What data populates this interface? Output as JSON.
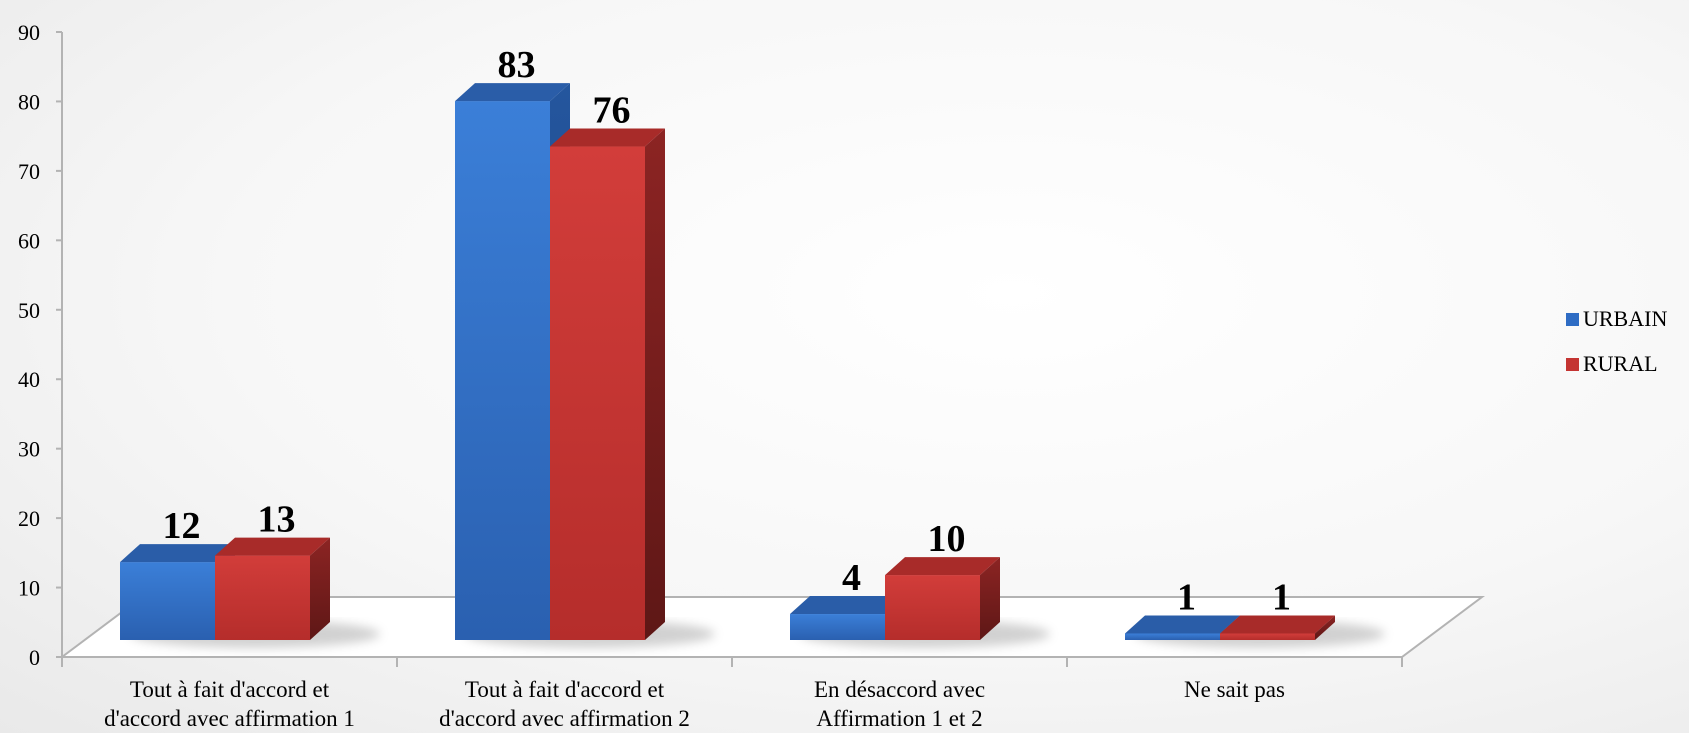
{
  "chart_data": {
    "type": "bar",
    "title": "",
    "xlabel": "",
    "ylabel": "",
    "ylim": [
      0,
      90
    ],
    "yticks": [
      0,
      10,
      20,
      30,
      40,
      50,
      60,
      70,
      80,
      90
    ],
    "categories": [
      [
        "Tout à fait d'accord et",
        "d'accord avec affirmation 1"
      ],
      [
        "Tout à fait d'accord et",
        "d'accord avec affirmation 2"
      ],
      [
        "En désaccord avec",
        "Affirmation 1 et 2"
      ],
      [
        "Ne sait pas"
      ]
    ],
    "series": [
      {
        "name": "URBAIN",
        "values": [
          12,
          83,
          4,
          1
        ],
        "color": "#2e6cc4",
        "top": "#2a5da8",
        "side": "#1f4a87"
      },
      {
        "name": "RURAL",
        "values": [
          13,
          76,
          10,
          1
        ],
        "color": "#c43432",
        "top": "#a82b29",
        "side": "#7d1f1e"
      }
    ],
    "legend": "right",
    "grid": false,
    "style": "3d-clustered-column"
  }
}
